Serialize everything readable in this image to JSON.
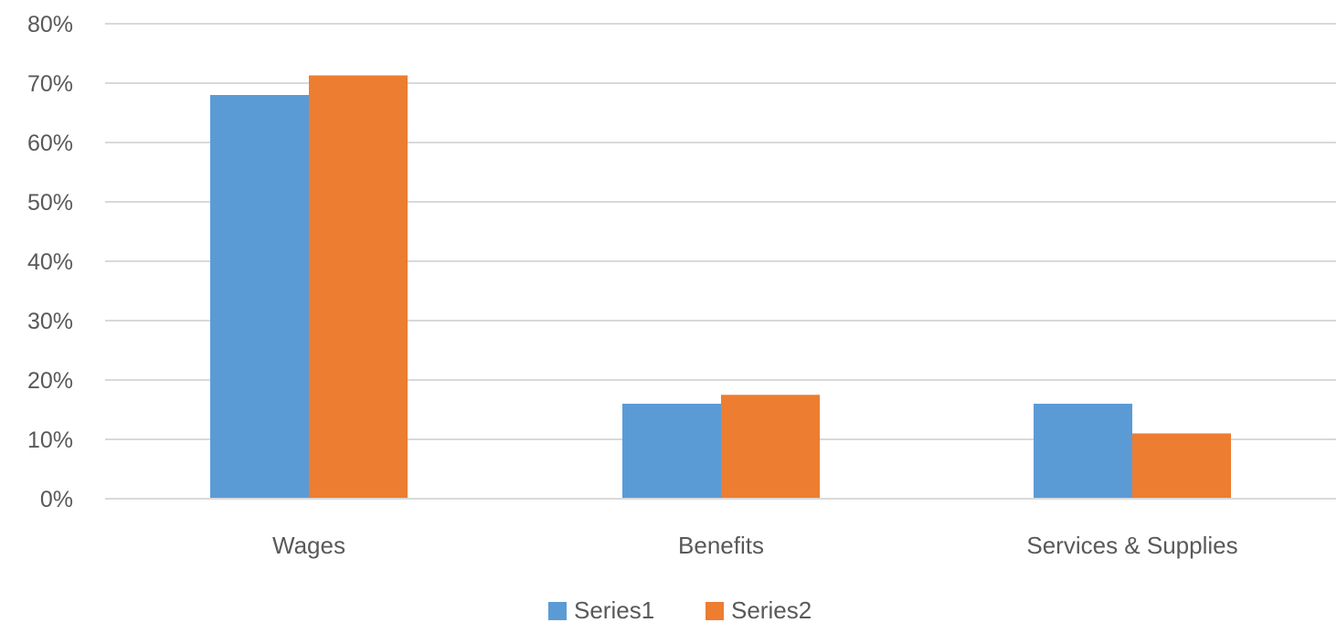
{
  "chart_data": {
    "type": "bar",
    "categories": [
      "Wages",
      "Benefits",
      "Services & Supplies"
    ],
    "series": [
      {
        "name": "Series1",
        "color": "#5B9BD5",
        "values": [
          0.68,
          0.16,
          0.16
        ]
      },
      {
        "name": "Series2",
        "color": "#ED7D31",
        "values": [
          0.713,
          0.175,
          0.11
        ]
      }
    ],
    "ylim": [
      0,
      0.8
    ],
    "yticks": [
      0,
      0.1,
      0.2,
      0.3,
      0.4,
      0.5,
      0.6,
      0.7,
      0.8
    ],
    "ytick_labels": [
      "0%",
      "10%",
      "20%",
      "30%",
      "40%",
      "50%",
      "60%",
      "70%",
      "80%"
    ],
    "title": "",
    "xlabel": "",
    "ylabel": "",
    "grid": true,
    "gridline_color": "#D9D9D9",
    "legend_position": "bottom-center"
  }
}
